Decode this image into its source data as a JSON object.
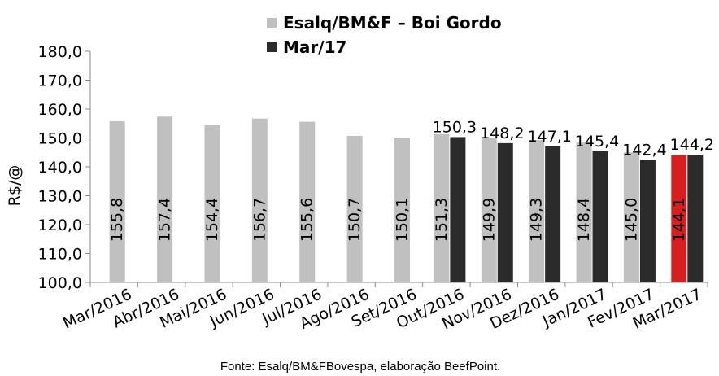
{
  "chart_data": {
    "type": "bar",
    "categories": [
      "Mar/2016",
      "Abr/2016",
      "Mai/2016",
      "Jun/2016",
      "Jul/2016",
      "Ago/2016",
      "Set/2016",
      "Out/2016",
      "Nov/2016",
      "Dez/2016",
      "Jan/2017",
      "Fev/2017",
      "Mar/2017"
    ],
    "series": [
      {
        "name": "Esalq/BM&F – Boi Gordo",
        "values": [
          155.8,
          157.4,
          154.4,
          156.7,
          155.6,
          150.7,
          150.1,
          151.3,
          149.9,
          149.3,
          148.4,
          145.0,
          144.1
        ],
        "labels": [
          "155,8",
          "157,4",
          "154,4",
          "156,7",
          "155,6",
          "150,7",
          "150,1",
          "151,3",
          "149,9",
          "149,3",
          "148,4",
          "145,0",
          "144,1"
        ],
        "color": "#c0c0c0",
        "highlight_last_color": "#d42020"
      },
      {
        "name": "Mar/17",
        "values": [
          null,
          null,
          null,
          null,
          null,
          null,
          null,
          150.3,
          148.2,
          147.1,
          145.4,
          142.4,
          144.2
        ],
        "labels": [
          null,
          null,
          null,
          null,
          null,
          null,
          null,
          "150,3",
          "148,2",
          "147,1",
          "145,4",
          "142,4",
          "144,2"
        ],
        "color": "#2b2b2b"
      }
    ],
    "ylabel": "R$/@",
    "ylim": [
      100,
      180
    ],
    "yticks": [
      "100,0",
      "110,0",
      "120,0",
      "130,0",
      "140,0",
      "150,0",
      "160,0",
      "170,0",
      "180,0"
    ],
    "grid": false,
    "legend": "top-center",
    "source": "Fonte: Esalq/BM&FBovespa, elaboração BeefPoint."
  }
}
